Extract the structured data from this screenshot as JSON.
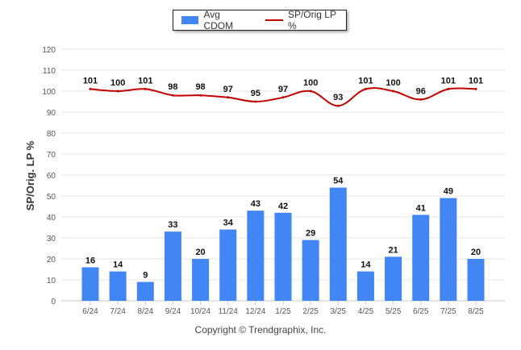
{
  "chart_data": {
    "type": "bar",
    "categories": [
      "6/24",
      "7/24",
      "8/24",
      "9/24",
      "10/24",
      "11/24",
      "12/24",
      "1/25",
      "2/25",
      "3/25",
      "4/25",
      "5/25",
      "6/25",
      "7/25",
      "8/25"
    ],
    "series": [
      {
        "name": "Avg CDOM",
        "kind": "bar",
        "color": "#4285f4",
        "values": [
          16,
          14,
          9,
          33,
          20,
          34,
          43,
          42,
          29,
          54,
          14,
          21,
          41,
          49,
          20
        ]
      },
      {
        "name": "SP/Orig LP %",
        "kind": "line",
        "color": "#c00000",
        "values": [
          101,
          100,
          101,
          98,
          98,
          97,
          95,
          97,
          100,
          93,
          101,
          100,
          96,
          101,
          101
        ]
      }
    ],
    "ylabel": "SP/Orig. LP %",
    "ylim": [
      0,
      120
    ],
    "yticks": [
      0,
      10,
      20,
      30,
      40,
      50,
      60,
      70,
      80,
      90,
      100,
      110,
      120
    ],
    "grid": true,
    "legend_position": "top-center"
  },
  "footer": {
    "copyright": "Copyright © Trendgraphix, Inc."
  }
}
